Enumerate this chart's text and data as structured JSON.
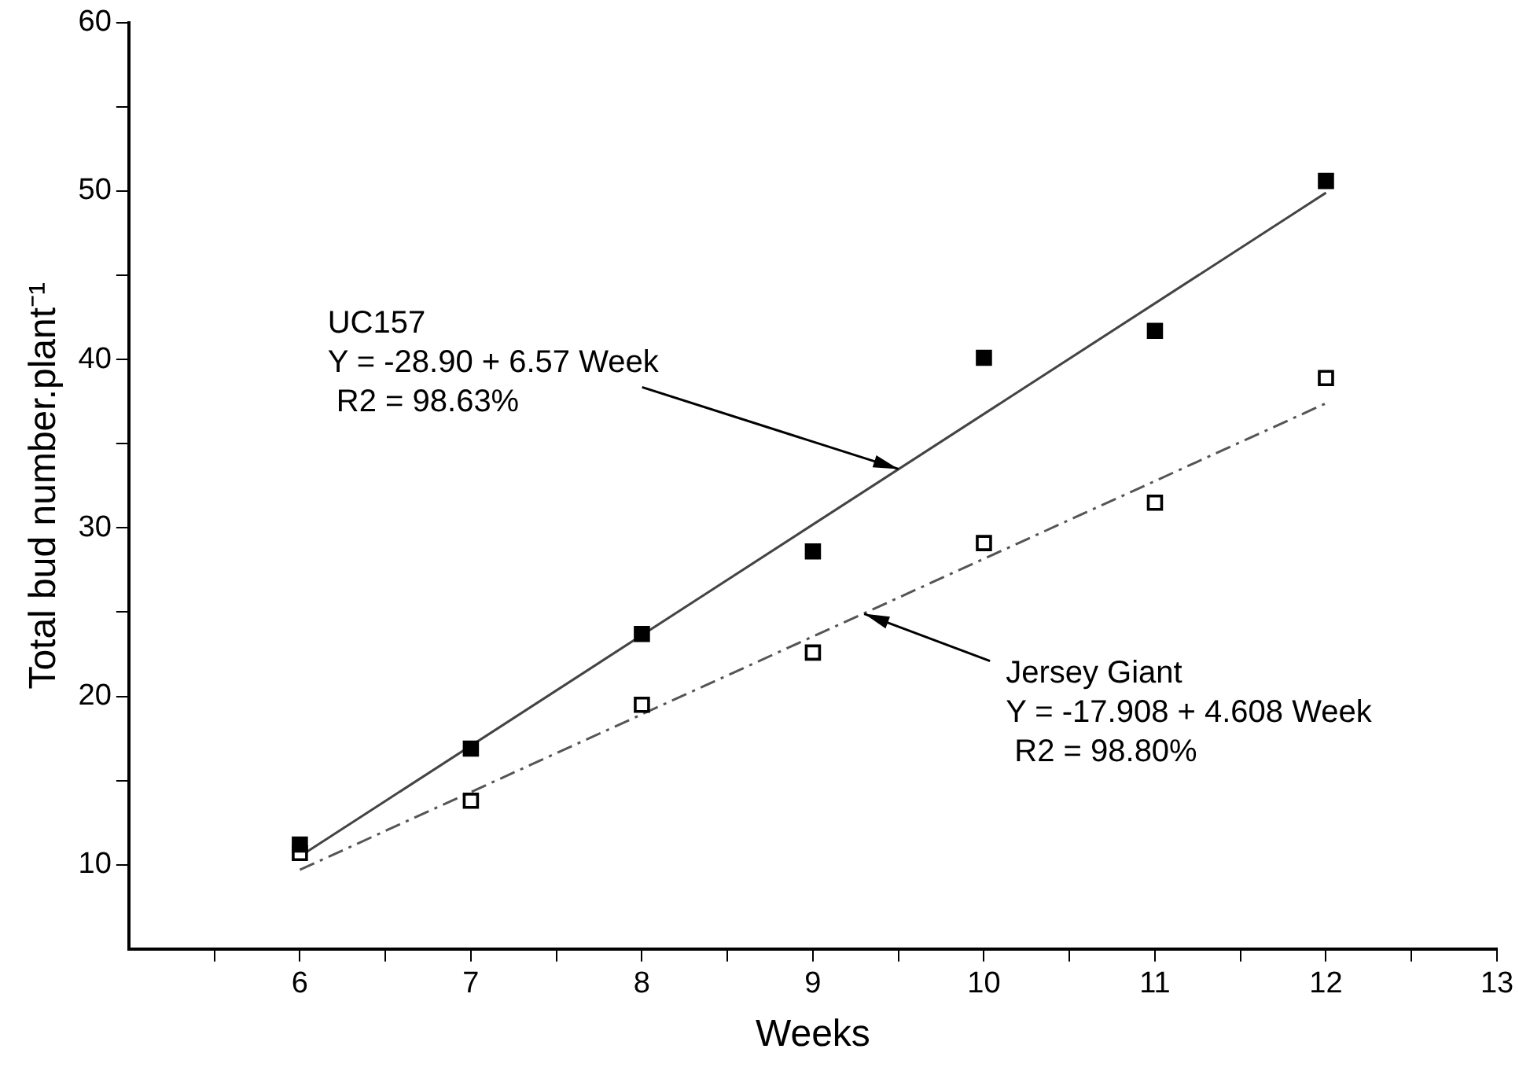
{
  "chart_data": {
    "type": "scatter",
    "xlabel": "Weeks",
    "ylabel": "Total bud number.plant⁻¹",
    "xlim": [
      5,
      13
    ],
    "xticks": [
      {
        "value": 5.5,
        "label": null
      },
      6,
      {
        "value": 6.5,
        "label": null
      },
      7,
      {
        "value": 7.5,
        "label": null
      },
      8,
      {
        "value": 8.5,
        "label": null
      },
      9,
      {
        "value": 9.5,
        "label": null
      },
      10,
      {
        "value": 10.5,
        "label": null
      },
      11,
      {
        "value": 11.5,
        "label": null
      },
      12,
      {
        "value": 12.5,
        "label": null
      },
      13
    ],
    "ylim": [
      5,
      60
    ],
    "yticks": [
      10,
      {
        "value": 15,
        "label": null
      },
      20,
      {
        "value": 25,
        "label": null
      },
      30,
      {
        "value": 35,
        "label": null
      },
      40,
      {
        "value": 45,
        "label": null
      },
      50,
      {
        "value": 55,
        "label": null
      },
      60
    ],
    "grid": false,
    "legend": false,
    "marker": "square",
    "series": [
      {
        "color": "#000000",
        "x": [
          6,
          7,
          8,
          9,
          10,
          11,
          12
        ],
        "values": [
          11.2,
          16.9,
          23.7,
          28.6,
          40.1,
          41.7,
          50.6
        ]
      },
      {
        "color": "#ffffff",
        "x": [
          6,
          7,
          8,
          9,
          10,
          11,
          12
        ],
        "values": [
          10.7,
          13.8,
          19.5,
          22.6,
          29.1,
          31.5,
          38.9
        ]
      },
      {
        "type": "line",
        "color": "#444444",
        "line_style": "solid",
        "marker": "none",
        "x": [
          6,
          12
        ],
        "values": [
          10.5,
          49.9
        ]
      },
      {
        "type": "line",
        "color": "#555555",
        "line_style": "dashed",
        "marker": "none",
        "x": [
          6,
          12
        ],
        "values": [
          9.7,
          37.4
        ]
      }
    ],
    "annotations": [
      {
        "text": "UC157\nY = -28.90 + 6.57 Week\n R2 = 98.63%",
        "x": 9.5,
        "y": 33.5
      },
      {
        "text": "Jersey Giant\nY = -17.908 + 4.608 Week\n R2 = 98.80%",
        "x": 9.3,
        "y": 24.9
      }
    ]
  }
}
